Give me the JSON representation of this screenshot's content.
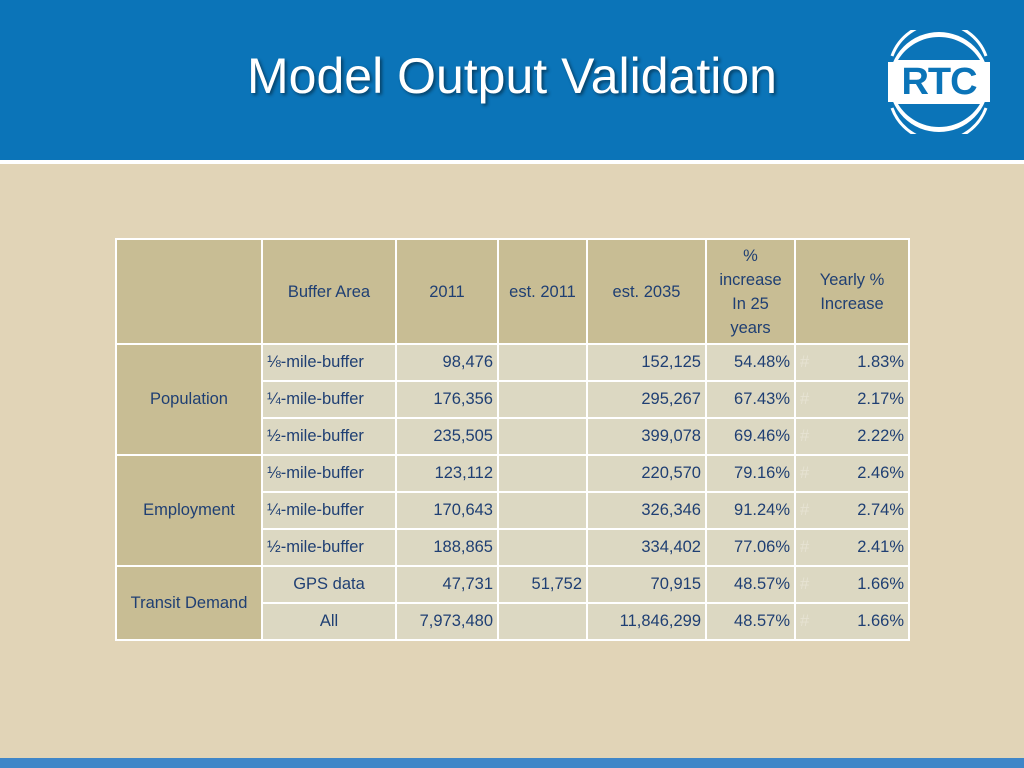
{
  "slide": {
    "title": "Model Output Validation",
    "logo_text": "RTC"
  },
  "colors": {
    "header_bg": "#0b74b8",
    "slide_bg": "#e1d4b7",
    "header_cell_bg": "#c8bd94",
    "data_cell_bg": "#dcd8c2",
    "text": "#1f3f73"
  },
  "table": {
    "headers": [
      "",
      "Buffer Area",
      "2011",
      "est. 2011",
      "est. 2035",
      "% increase In 25 years",
      "Yearly % Increase"
    ],
    "groups": [
      {
        "name": "Population",
        "rows": [
          {
            "buffer": "⅛-mile-buffer",
            "y2011": "98,476",
            "est2011": "",
            "est2035": "152,125",
            "pct25": "54.48%",
            "mark": "#",
            "yearly": "1.83%"
          },
          {
            "buffer": "¼-mile-buffer",
            "y2011": "176,356",
            "est2011": "",
            "est2035": "295,267",
            "pct25": "67.43%",
            "mark": "#",
            "yearly": "2.17%"
          },
          {
            "buffer": "½-mile-buffer",
            "y2011": "235,505",
            "est2011": "",
            "est2035": "399,078",
            "pct25": "69.46%",
            "mark": "#",
            "yearly": "2.22%"
          }
        ]
      },
      {
        "name": "Employment",
        "rows": [
          {
            "buffer": "⅛-mile-buffer",
            "y2011": "123,112",
            "est2011": "",
            "est2035": "220,570",
            "pct25": "79.16%",
            "mark": "#",
            "yearly": "2.46%"
          },
          {
            "buffer": "¼-mile-buffer",
            "y2011": "170,643",
            "est2011": "",
            "est2035": "326,346",
            "pct25": "91.24%",
            "mark": "#",
            "yearly": "2.74%"
          },
          {
            "buffer": "½-mile-buffer",
            "y2011": "188,865",
            "est2011": "",
            "est2035": "334,402",
            "pct25": "77.06%",
            "mark": "#",
            "yearly": "2.41%"
          }
        ]
      },
      {
        "name": "Transit Demand",
        "rows": [
          {
            "buffer": "GPS data",
            "y2011": "47,731",
            "est2011": "51,752",
            "est2035": "70,915",
            "pct25": "48.57%",
            "mark": "#",
            "yearly": "1.66%"
          },
          {
            "buffer": "All",
            "y2011": "7,973,480",
            "est2011": "",
            "est2035": "11,846,299",
            "pct25": "48.57%",
            "mark": "#",
            "yearly": "1.66%"
          }
        ]
      }
    ]
  }
}
